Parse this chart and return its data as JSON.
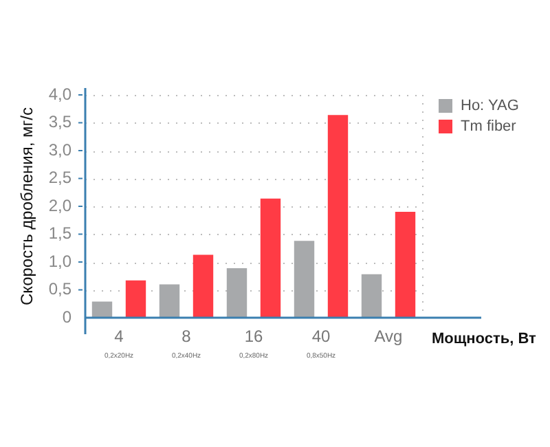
{
  "chart_data": {
    "type": "bar",
    "xlabel": "Мощность, Вт",
    "ylabel": "Скорость дробления, мг/с",
    "categories": [
      "4",
      "8",
      "16",
      "40",
      "Avg"
    ],
    "series": [
      {
        "name": "Ho: YAG",
        "color": "#a7a9ab",
        "values": [
          0.29,
          0.6,
          0.89,
          1.38,
          0.78
        ]
      },
      {
        "name": "Tm fiber",
        "color": "#ff3b45",
        "values": [
          0.67,
          1.13,
          2.14,
          3.64,
          1.9
        ]
      }
    ],
    "annotations": [
      "0,2x20Hz",
      "0,2x40Hz",
      "0,2x80Hz",
      "0,8x50Hz"
    ],
    "ylim": [
      0,
      4
    ],
    "yticks": [
      {
        "value": 0,
        "label": "0"
      },
      {
        "value": 0.5,
        "label": "0,5"
      },
      {
        "value": 1,
        "label": "1,0"
      },
      {
        "value": 1.5,
        "label": "1,5"
      },
      {
        "value": 2,
        "label": "2,0"
      },
      {
        "value": 2.5,
        "label": "2,5"
      },
      {
        "value": 3,
        "label": "3,0"
      },
      {
        "value": 3.5,
        "label": "3,5"
      },
      {
        "value": 4,
        "label": "4,0"
      }
    ],
    "grid": "y",
    "legend": "top right"
  }
}
